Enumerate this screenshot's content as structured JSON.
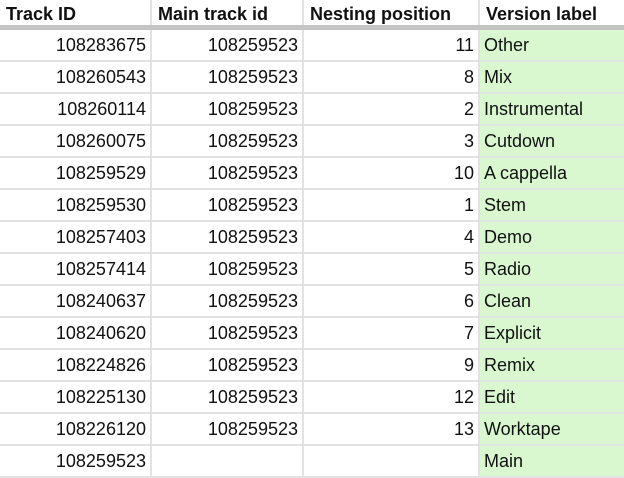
{
  "columns": [
    "Track ID",
    "Main track id",
    "Nesting position",
    "Version label"
  ],
  "highlight_color": "#d9f8d0",
  "rows": [
    [
      "108283675",
      "108259523",
      "11",
      "Other"
    ],
    [
      "108260543",
      "108259523",
      "8",
      "Mix"
    ],
    [
      "108260114",
      "108259523",
      "2",
      "Instrumental"
    ],
    [
      "108260075",
      "108259523",
      "3",
      "Cutdown"
    ],
    [
      "108259529",
      "108259523",
      "10",
      "A cappella"
    ],
    [
      "108259530",
      "108259523",
      "1",
      "Stem"
    ],
    [
      "108257403",
      "108259523",
      "4",
      "Demo"
    ],
    [
      "108257414",
      "108259523",
      "5",
      "Radio"
    ],
    [
      "108240637",
      "108259523",
      "6",
      "Clean"
    ],
    [
      "108240620",
      "108259523",
      "7",
      "Explicit"
    ],
    [
      "108224826",
      "108259523",
      "9",
      "Remix"
    ],
    [
      "108225130",
      "108259523",
      "12",
      "Edit"
    ],
    [
      "108226120",
      "108259523",
      "13",
      "Worktape"
    ],
    [
      "108259523",
      "",
      "",
      "Main"
    ]
  ]
}
